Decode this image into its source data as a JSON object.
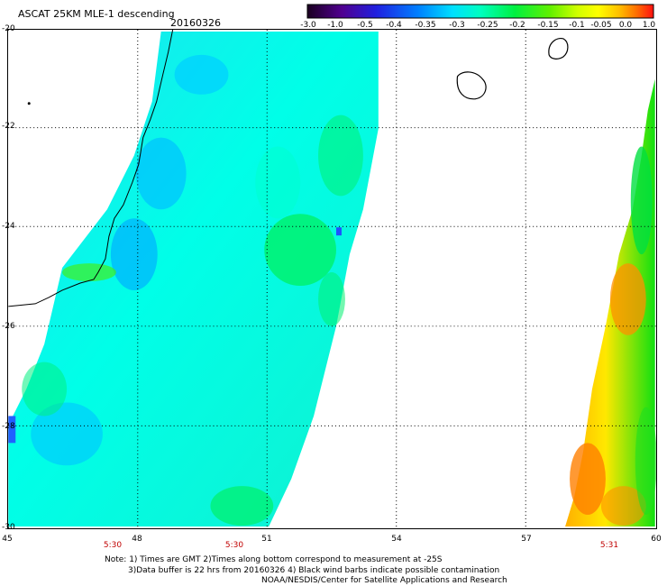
{
  "header": {
    "title": "ASCAT 25KM MLE-1 descending",
    "date": "20160326"
  },
  "colorbar": {
    "labels": [
      "-3.0",
      "-1.0",
      "-0.5",
      "-0.4",
      "-0.35",
      "-0.3",
      "-0.25",
      "-0.2",
      "-0.15",
      "-0.1",
      "-0.05",
      "0.0",
      "1.0"
    ],
    "colors": [
      "#2a0030",
      "#4a00a0",
      "#1010e0",
      "#0060ff",
      "#00b0ff",
      "#00ffff",
      "#00ff80",
      "#00ee00",
      "#80ff00",
      "#ffff00",
      "#ffc000",
      "#ff7000",
      "#ff1010"
    ]
  },
  "axes": {
    "lat_labels": [
      "-20",
      "-22",
      "-24",
      "-26",
      "-28",
      "-30"
    ],
    "lon_labels": [
      "45",
      "48",
      "51",
      "54",
      "57",
      "60"
    ],
    "lat_range": [
      -30,
      -20
    ],
    "lon_range": [
      45,
      60
    ]
  },
  "times": [
    "5:30",
    "5:30",
    "5:31"
  ],
  "notes": {
    "line1": "Note: 1) Times are GMT 2)Times along bottom correspond to measurement at -25S",
    "line2": "3)Data buffer is 22 hrs from 20160326 4) Black wind barbs indicate possible contamination",
    "line3": "NOAA/NESDIS/Center for Satellite Applications and Research"
  }
}
